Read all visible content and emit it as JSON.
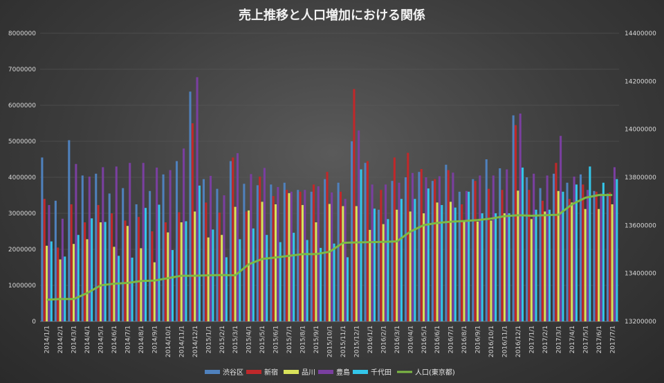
{
  "chart_data": {
    "type": "bar+line",
    "title": "売上推移と人口増加における関係",
    "categories": [
      "2014/1/1",
      "2014/2/1",
      "2014/3/1",
      "2014/4/1",
      "2014/5/1",
      "2014/6/1",
      "2014/7/1",
      "2014/8/1",
      "2014/9/1",
      "2014/10/1",
      "2014/11/1",
      "2014/12/1",
      "2015/1/1",
      "2015/2/1",
      "2015/3/1",
      "2015/4/1",
      "2015/5/1",
      "2015/6/1",
      "2015/7/1",
      "2015/8/1",
      "2015/9/1",
      "2015/10/1",
      "2015/11/1",
      "2015/12/1",
      "2016/1/1",
      "2016/2/1",
      "2016/3/1",
      "2016/4/1",
      "2016/5/1",
      "2016/6/1",
      "2016/7/1",
      "2016/8/1",
      "2016/9/1",
      "2016/10/1",
      "2016/11/1",
      "2016/12/1",
      "2017/1/1",
      "2017/2/1",
      "2017/3/1",
      "2017/4/1",
      "2017/5/1",
      "2017/6/1",
      "2017/7/1"
    ],
    "y_left": {
      "min": 0,
      "max": 8000000,
      "ticks": [
        "0",
        "1000000",
        "2000000",
        "3000000",
        "4000000",
        "5000000",
        "6000000",
        "7000000",
        "8000000"
      ]
    },
    "y_right": {
      "min": 13200000,
      "max": 14400000,
      "ticks": [
        "13200000",
        "13400000",
        "13600000",
        "13800000",
        "14000000",
        "14200000",
        "14400000"
      ]
    },
    "series": [
      {
        "name": "渋谷区",
        "color": "#4f81bd",
        "values": [
          4550000,
          3350000,
          5030000,
          4050000,
          4100000,
          3550000,
          3700000,
          3250000,
          3620000,
          4080000,
          4450000,
          6380000,
          3950000,
          3680000,
          4450000,
          3820000,
          3780000,
          3800000,
          3850000,
          3650000,
          3600000,
          3950000,
          3850000,
          5000000,
          4400000,
          3100000,
          3900000,
          4000000,
          4150000,
          3900000,
          4350000,
          3600000,
          3950000,
          4500000,
          4250000,
          5720000,
          4000000,
          3700000,
          4100000,
          3850000,
          4080000,
          3620000,
          3550000
        ]
      },
      {
        "name": "新宿",
        "color": "#c0282a",
        "values": [
          3400000,
          2050000,
          3250000,
          2750000,
          3230000,
          3000000,
          2800000,
          2900000,
          2500000,
          2750000,
          3030000,
          5500000,
          3300000,
          3020000,
          4550000,
          3050000,
          4020000,
          3480000,
          3650000,
          3600000,
          3800000,
          4150000,
          3600000,
          6450000,
          4450000,
          3650000,
          4550000,
          4680000,
          4230000,
          3950000,
          4200000,
          3250000,
          3900000,
          3680000,
          3650000,
          5450000,
          3650000,
          3350000,
          4400000,
          3400000,
          3800000,
          3600000,
          3580000
        ]
      },
      {
        "name": "品川",
        "color": "#d8e25a",
        "values": [
          2100000,
          1720000,
          2150000,
          2280000,
          2750000,
          2070000,
          2650000,
          2030000,
          1640000,
          2470000,
          2750000,
          3050000,
          2330000,
          2400000,
          3180000,
          3080000,
          3320000,
          3250000,
          3560000,
          3230000,
          2750000,
          3260000,
          3200000,
          3200000,
          2540000,
          2700000,
          3100000,
          3050000,
          3000000,
          3300000,
          3320000,
          2770000,
          2770000,
          2800000,
          3000000,
          3630000,
          2840000,
          3050000,
          3620000,
          3300000,
          3120000,
          3120000,
          3250000
        ]
      },
      {
        "name": "豊島",
        "color": "#7a3fa0",
        "values": [
          3230000,
          2850000,
          4370000,
          4020000,
          4280000,
          4300000,
          4400000,
          4400000,
          4270000,
          4200000,
          4800000,
          6780000,
          4040000,
          3500000,
          4670000,
          4090000,
          4260000,
          3730000,
          3600000,
          3650000,
          3750000,
          3580000,
          3400000,
          5300000,
          3800000,
          3800000,
          3850000,
          4120000,
          4000000,
          4030000,
          4130000,
          3620000,
          4050000,
          4050000,
          4220000,
          5770000,
          4100000,
          4050000,
          5150000,
          4020000,
          3650000,
          3550000,
          4280000
        ]
      },
      {
        "name": "千代田",
        "color": "#33c6ea",
        "values": [
          2220000,
          1800000,
          2400000,
          2860000,
          2760000,
          1820000,
          1770000,
          3150000,
          3240000,
          1980000,
          2780000,
          3770000,
          2550000,
          1780000,
          2280000,
          2580000,
          2400000,
          2200000,
          2460000,
          2260000,
          2040000,
          2160000,
          1780000,
          4220000,
          3130000,
          2840000,
          3400000,
          3400000,
          3690000,
          3230000,
          3160000,
          3600000,
          3000000,
          3000000,
          3000000,
          4270000,
          3100000,
          3100000,
          3600000,
          3800000,
          4300000,
          3850000,
          3950000
        ]
      },
      {
        "name": "人口(東京都)",
        "color": "#7db944",
        "type": "line",
        "axis": "right",
        "values": [
          13290000,
          13293000,
          13293000,
          13318000,
          13350000,
          13357000,
          13360000,
          13368000,
          13370000,
          13380000,
          13390000,
          13390000,
          13392000,
          13393000,
          13392000,
          13438000,
          13460000,
          13466000,
          13473000,
          13480000,
          13480000,
          13490000,
          13527000,
          13529000,
          13530000,
          13531000,
          13533000,
          13574000,
          13601000,
          13610000,
          13615000,
          13618000,
          13622000,
          13628000,
          13638000,
          13642000,
          13640000,
          13642000,
          13644000,
          13687000,
          13715000,
          13726000,
          13726000
        ]
      }
    ],
    "legend_position": "bottom"
  }
}
